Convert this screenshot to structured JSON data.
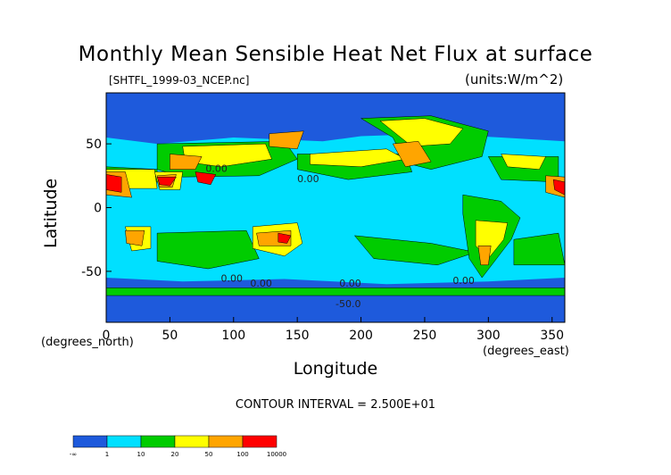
{
  "chart_data": {
    "type": "heatmap",
    "title": "Monthly Mean Sensible Heat Net Flux at surface",
    "source_file": "[SHTFL_1999-03_NCEP.nc]",
    "units": "(units:W/m^2)",
    "xlabel": "Longitude",
    "ylabel": "Latitude",
    "x_units": "(degrees_east)",
    "y_units": "(degrees_north)",
    "xlim": [
      0,
      360
    ],
    "ylim": [
      -90,
      90
    ],
    "x_ticks": [
      0,
      50,
      100,
      150,
      200,
      250,
      300,
      350
    ],
    "y_ticks": [
      -50,
      0,
      50
    ],
    "contour_interval": "CONTOUR INTERVAL = 2.500E+01",
    "contour_labels": [
      {
        "text": "0.00",
        "lon": 150,
        "lat": 20
      },
      {
        "text": "0.00",
        "lon": 78,
        "lat": 28
      },
      {
        "text": "0.00",
        "lon": 90,
        "lat": -58
      },
      {
        "text": "0.00",
        "lon": 113,
        "lat": -62
      },
      {
        "text": "0.00",
        "lon": 183,
        "lat": -62
      },
      {
        "text": "0.00",
        "lon": 272,
        "lat": -60
      },
      {
        "text": "-50.0",
        "lon": 180,
        "lat": -78
      }
    ],
    "colorbar": {
      "tick_labels": [
        "-∞",
        "1",
        "10",
        "20",
        "50",
        "100",
        "10000"
      ],
      "colors": [
        "#1e5adc",
        "#00e0ff",
        "#00cc00",
        "#ffff00",
        "#ffa500",
        "#ff0000"
      ]
    },
    "regions": [
      {
        "name": "ocean-background",
        "level": 2,
        "polygon": [
          [
            0,
            90
          ],
          [
            360,
            90
          ],
          [
            360,
            -90
          ],
          [
            0,
            -90
          ]
        ]
      },
      {
        "name": "northern-high-lat",
        "level": 1,
        "polygon": [
          [
            0,
            90
          ],
          [
            360,
            90
          ],
          [
            360,
            52
          ],
          [
            310,
            55
          ],
          [
            255,
            58
          ],
          [
            200,
            56
          ],
          [
            170,
            52
          ],
          [
            100,
            55
          ],
          [
            40,
            50
          ],
          [
            0,
            55
          ]
        ]
      },
      {
        "name": "southern-ocean",
        "level": 1,
        "polygon": [
          [
            0,
            -55
          ],
          [
            60,
            -58
          ],
          [
            140,
            -56
          ],
          [
            220,
            -60
          ],
          [
            300,
            -58
          ],
          [
            360,
            -55
          ],
          [
            360,
            -90
          ],
          [
            0,
            -90
          ]
        ]
      },
      {
        "name": "antarctic-green",
        "level": 3,
        "polygon": [
          [
            0,
            -63
          ],
          [
            360,
            -63
          ],
          [
            360,
            -69
          ],
          [
            0,
            -69
          ]
        ]
      },
      {
        "name": "antarctica",
        "level": 1,
        "polygon": [
          [
            0,
            -70
          ],
          [
            360,
            -70
          ],
          [
            360,
            -90
          ],
          [
            0,
            -90
          ]
        ]
      },
      {
        "name": "tropical-belt",
        "level": 2,
        "polygon": [
          [
            0,
            18
          ],
          [
            100,
            10
          ],
          [
            200,
            14
          ],
          [
            270,
            8
          ],
          [
            360,
            15
          ],
          [
            360,
            -18
          ],
          [
            270,
            -12
          ],
          [
            180,
            -20
          ],
          [
            90,
            -15
          ],
          [
            0,
            -20
          ]
        ]
      },
      {
        "name": "south-pacific-green",
        "level": 3,
        "polygon": [
          [
            195,
            -22
          ],
          [
            255,
            -28
          ],
          [
            290,
            -35
          ],
          [
            260,
            -45
          ],
          [
            210,
            -40
          ]
        ]
      },
      {
        "name": "south-indian-green",
        "level": 3,
        "polygon": [
          [
            40,
            -20
          ],
          [
            110,
            -18
          ],
          [
            120,
            -40
          ],
          [
            80,
            -48
          ],
          [
            40,
            -42
          ]
        ]
      },
      {
        "name": "south-atlantic-green",
        "level": 3,
        "polygon": [
          [
            320,
            -25
          ],
          [
            355,
            -20
          ],
          [
            360,
            -45
          ],
          [
            320,
            -45
          ]
        ]
      },
      {
        "name": "north-pacific-green",
        "level": 3,
        "polygon": [
          [
            150,
            42
          ],
          [
            235,
            42
          ],
          [
            240,
            28
          ],
          [
            190,
            22
          ],
          [
            150,
            30
          ]
        ]
      },
      {
        "name": "north-atlantic-green",
        "level": 3,
        "polygon": [
          [
            300,
            40
          ],
          [
            355,
            40
          ],
          [
            355,
            20
          ],
          [
            310,
            22
          ]
        ]
      },
      {
        "name": "north-africa-green",
        "level": 3,
        "polygon": [
          [
            0,
            32
          ],
          [
            40,
            30
          ],
          [
            40,
            20
          ],
          [
            0,
            20
          ]
        ]
      },
      {
        "name": "asia-green",
        "level": 3,
        "polygon": [
          [
            40,
            50
          ],
          [
            140,
            52
          ],
          [
            150,
            38
          ],
          [
            120,
            25
          ],
          [
            60,
            24
          ],
          [
            40,
            30
          ]
        ]
      },
      {
        "name": "north-america-green",
        "level": 3,
        "polygon": [
          [
            200,
            70
          ],
          [
            255,
            72
          ],
          [
            300,
            60
          ],
          [
            295,
            40
          ],
          [
            255,
            30
          ],
          [
            235,
            35
          ],
          [
            225,
            55
          ]
        ]
      },
      {
        "name": "south-america-green",
        "level": 3,
        "polygon": [
          [
            280,
            10
          ],
          [
            310,
            5
          ],
          [
            325,
            -8
          ],
          [
            318,
            -25
          ],
          [
            295,
            -55
          ],
          [
            285,
            -40
          ],
          [
            280,
            -5
          ]
        ]
      },
      {
        "name": "sahara-yellow",
        "level": 4,
        "polygon": [
          [
            0,
            30
          ],
          [
            38,
            30
          ],
          [
            40,
            15
          ],
          [
            10,
            15
          ],
          [
            0,
            18
          ]
        ]
      },
      {
        "name": "arabia-yellow",
        "level": 4,
        "polygon": [
          [
            38,
            28
          ],
          [
            60,
            28
          ],
          [
            58,
            14
          ],
          [
            42,
            14
          ]
        ]
      },
      {
        "name": "central-asia-yellow",
        "level": 4,
        "polygon": [
          [
            60,
            48
          ],
          [
            125,
            50
          ],
          [
            130,
            38
          ],
          [
            90,
            32
          ],
          [
            62,
            36
          ]
        ]
      },
      {
        "name": "north-pacific-yellow",
        "level": 4,
        "polygon": [
          [
            160,
            42
          ],
          [
            220,
            46
          ],
          [
            235,
            38
          ],
          [
            200,
            32
          ],
          [
            160,
            34
          ]
        ]
      },
      {
        "name": "north-america-yellow",
        "level": 4,
        "polygon": [
          [
            215,
            68
          ],
          [
            250,
            70
          ],
          [
            280,
            62
          ],
          [
            270,
            50
          ],
          [
            240,
            48
          ]
        ]
      },
      {
        "name": "north-atlantic-yellow",
        "level": 4,
        "polygon": [
          [
            310,
            42
          ],
          [
            345,
            40
          ],
          [
            340,
            30
          ],
          [
            315,
            32
          ]
        ]
      },
      {
        "name": "australia-yellow",
        "level": 4,
        "polygon": [
          [
            115,
            -15
          ],
          [
            150,
            -12
          ],
          [
            154,
            -28
          ],
          [
            140,
            -38
          ],
          [
            115,
            -32
          ]
        ]
      },
      {
        "name": "south-america-yellow",
        "level": 4,
        "polygon": [
          [
            290,
            -10
          ],
          [
            315,
            -12
          ],
          [
            312,
            -25
          ],
          [
            300,
            -40
          ],
          [
            290,
            -30
          ]
        ]
      },
      {
        "name": "southern-africa-yellow",
        "level": 4,
        "polygon": [
          [
            15,
            -15
          ],
          [
            35,
            -15
          ],
          [
            35,
            -32
          ],
          [
            20,
            -34
          ]
        ]
      },
      {
        "name": "west-sahara-orange",
        "level": 5,
        "polygon": [
          [
            345,
            25
          ],
          [
            360,
            24
          ],
          [
            360,
            8
          ],
          [
            345,
            12
          ]
        ]
      },
      {
        "name": "east-sahara-orange",
        "level": 5,
        "polygon": [
          [
            0,
            28
          ],
          [
            15,
            28
          ],
          [
            20,
            8
          ],
          [
            0,
            10
          ]
        ]
      },
      {
        "name": "arabia-orange",
        "level": 5,
        "polygon": [
          [
            40,
            25
          ],
          [
            55,
            26
          ],
          [
            52,
            16
          ],
          [
            42,
            16
          ]
        ]
      },
      {
        "name": "central-asia-orange",
        "level": 5,
        "polygon": [
          [
            50,
            42
          ],
          [
            75,
            40
          ],
          [
            70,
            30
          ],
          [
            50,
            30
          ]
        ]
      },
      {
        "name": "mongolia-orange",
        "level": 5,
        "polygon": [
          [
            128,
            58
          ],
          [
            155,
            60
          ],
          [
            150,
            46
          ],
          [
            128,
            48
          ]
        ]
      },
      {
        "name": "north-america-orange",
        "level": 5,
        "polygon": [
          [
            225,
            50
          ],
          [
            245,
            52
          ],
          [
            255,
            36
          ],
          [
            235,
            32
          ]
        ]
      },
      {
        "name": "australia-orange",
        "level": 5,
        "polygon": [
          [
            118,
            -20
          ],
          [
            145,
            -18
          ],
          [
            145,
            -30
          ],
          [
            120,
            -30
          ]
        ]
      },
      {
        "name": "namibia-orange",
        "level": 5,
        "polygon": [
          [
            15,
            -18
          ],
          [
            30,
            -18
          ],
          [
            28,
            -30
          ],
          [
            16,
            -28
          ]
        ]
      },
      {
        "name": "argentina-orange",
        "level": 5,
        "polygon": [
          [
            292,
            -30
          ],
          [
            302,
            -30
          ],
          [
            300,
            -45
          ],
          [
            294,
            -45
          ]
        ]
      },
      {
        "name": "sahara-red",
        "level": 6,
        "polygon": [
          [
            0,
            26
          ],
          [
            12,
            24
          ],
          [
            12,
            12
          ],
          [
            0,
            14
          ]
        ]
      },
      {
        "name": "arabia-red",
        "level": 6,
        "polygon": [
          [
            40,
            24
          ],
          [
            55,
            24
          ],
          [
            50,
            17
          ],
          [
            42,
            18
          ]
        ]
      },
      {
        "name": "india-red",
        "level": 6,
        "polygon": [
          [
            70,
            28
          ],
          [
            86,
            26
          ],
          [
            82,
            18
          ],
          [
            72,
            20
          ]
        ]
      },
      {
        "name": "australia-red",
        "level": 6,
        "polygon": [
          [
            135,
            -20
          ],
          [
            145,
            -22
          ],
          [
            142,
            -28
          ],
          [
            135,
            -27
          ]
        ]
      },
      {
        "name": "west-sahara-red",
        "level": 6,
        "polygon": [
          [
            351,
            22
          ],
          [
            360,
            20
          ],
          [
            360,
            10
          ],
          [
            352,
            14
          ]
        ]
      }
    ]
  }
}
